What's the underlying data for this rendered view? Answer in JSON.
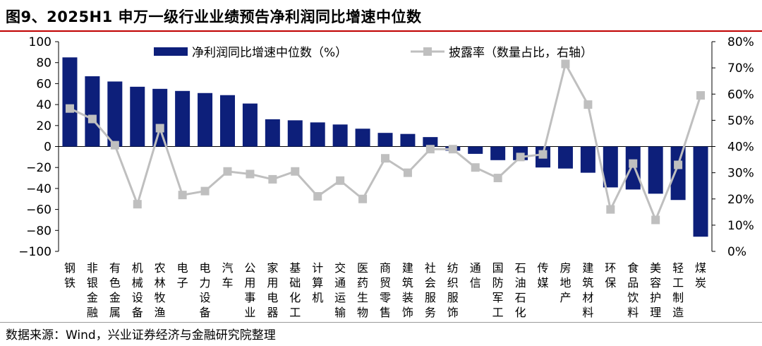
{
  "figure": {
    "title": "图9、2025H1 申万一级行业业绩预告净利润同比增速中位数",
    "source": "数据来源：Wind，兴业证券经济与金融研究院整理"
  },
  "chart_data": {
    "type": "bar",
    "title": "图9、2025H1 申万一级行业业绩预告净利润同比增速中位数",
    "categories": [
      "钢铁",
      "非银金融",
      "有色金属",
      "机械设备",
      "农林牧渔",
      "电子",
      "电力设备",
      "汽车",
      "公用事业",
      "家用电器",
      "基础化工",
      "计算机",
      "交通运输",
      "医药生物",
      "商贸零售",
      "建筑装饰",
      "社会服务",
      "纺织服饰",
      "通信",
      "国防军工",
      "石油石化",
      "传媒",
      "房地产",
      "建筑材料",
      "环保",
      "食品饮料",
      "美容护理",
      "轻工制造",
      "煤炭"
    ],
    "series": [
      {
        "name": "净利润同比增速中位数（%）",
        "type": "bar",
        "axis": "left",
        "color": "#0d1f7a",
        "values": [
          85,
          67,
          62,
          57,
          55,
          53,
          51,
          49,
          41,
          26,
          25,
          23,
          21,
          17,
          13,
          12,
          9,
          -4,
          -7,
          -13,
          -13,
          -20,
          -21,
          -25,
          -39,
          -41,
          -45,
          -51,
          -86
        ]
      },
      {
        "name": "披露率（数量占比，右轴）",
        "type": "line",
        "axis": "right",
        "color": "#bfbfbf",
        "values": [
          54.5,
          50.5,
          40.5,
          18,
          47,
          21.5,
          23,
          30.5,
          29.5,
          27.5,
          30.5,
          21,
          27,
          20,
          35.5,
          30,
          39,
          39,
          32,
          28,
          36,
          37,
          71.5,
          56,
          16,
          33.5,
          12,
          33,
          59.5
        ]
      }
    ],
    "y_left": {
      "ylim": [
        -100,
        100
      ],
      "ticks": [
        "−100",
        "−80",
        "−60",
        "−40",
        "−20",
        "0",
        "20",
        "40",
        "60",
        "80",
        "100"
      ]
    },
    "y_right": {
      "ylim": [
        0,
        80
      ],
      "ticks": [
        "0%",
        "10%",
        "20%",
        "30%",
        "40%",
        "50%",
        "60%",
        "70%",
        "80%"
      ]
    },
    "legend": {
      "placement": "top-center"
    }
  }
}
